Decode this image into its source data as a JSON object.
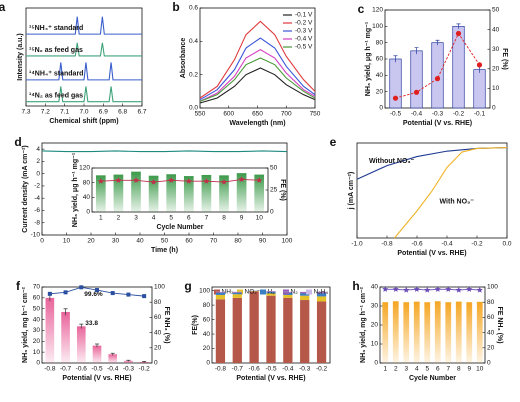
{
  "chart_data": [
    {
      "type": "line",
      "label": "a",
      "xlabel": "Chemical shift (ppm)",
      "ylabel": "Intensity (a.u.)",
      "xlim": [
        7.3,
        6.7
      ],
      "xticks": [
        7.3,
        7.2,
        7.1,
        {
          "value": 7,
          "label": "7.0"
        },
        6.9,
        6.8,
        6.7
      ],
      "ylim": [
        0,
        4.5
      ],
      "legend": "inline",
      "series": [
        {
          "name": "¹⁵NH₄⁺ standard",
          "color": "#3a5fcd",
          "x": [
            7.3,
            7.045,
            7.035,
            7.025,
            6.915,
            6.905,
            6.895,
            6.7
          ],
          "values": [
            3.3,
            3.3,
            4.1,
            3.3,
            3.3,
            4.1,
            3.3,
            3.3
          ]
        },
        {
          "name": "¹⁵N₂ as feed gas",
          "color": "#3fa37a",
          "x": [
            7.3,
            7.045,
            7.035,
            7.025,
            6.915,
            6.905,
            6.895,
            6.7
          ],
          "values": [
            2.3,
            2.3,
            2.9,
            2.3,
            2.3,
            2.9,
            2.3,
            2.3
          ]
        },
        {
          "name": "¹⁴NH₄⁺ standard",
          "color": "#3a5fcd",
          "x": [
            7.3,
            7.13,
            7.12,
            7.11,
            7.0,
            6.99,
            6.98,
            6.87,
            6.86,
            6.85,
            6.7
          ],
          "values": [
            1.2,
            1.2,
            2.0,
            1.2,
            1.2,
            2.0,
            1.2,
            1.2,
            2.0,
            1.2,
            1.2
          ]
        },
        {
          "name": "¹⁴N₂ as feed gas",
          "color": "#3fa37a",
          "x": [
            7.3,
            7.13,
            7.12,
            7.11,
            7.0,
            6.99,
            6.98,
            6.87,
            6.86,
            6.85,
            6.7
          ],
          "values": [
            0.2,
            0.2,
            0.9,
            0.2,
            0.2,
            0.9,
            0.2,
            0.2,
            0.9,
            0.2,
            0.2
          ]
        }
      ]
    },
    {
      "type": "line",
      "label": "b",
      "xlabel": "Wavelength (nm)",
      "ylabel": "Absorbance",
      "xlim": [
        550,
        750
      ],
      "xticks": [
        550,
        600,
        650,
        700,
        750
      ],
      "ylim": [
        0,
        0.6
      ],
      "yticks": [
        {
          "value": 0,
          "label": "0.0"
        },
        0.2,
        0.4,
        0.6
      ],
      "legend": "upper right",
      "series": [
        {
          "name": "-0.1 V",
          "color": "#222222",
          "x": [
            550,
            580,
            610,
            630,
            655,
            680,
            700,
            730,
            750
          ],
          "values": [
            0.03,
            0.06,
            0.13,
            0.2,
            0.24,
            0.2,
            0.14,
            0.08,
            0.05
          ]
        },
        {
          "name": "-0.2 V",
          "color": "#e0383b",
          "x": [
            550,
            580,
            610,
            630,
            655,
            680,
            700,
            730,
            750
          ],
          "values": [
            0.06,
            0.13,
            0.29,
            0.44,
            0.52,
            0.44,
            0.31,
            0.17,
            0.1
          ]
        },
        {
          "name": "-0.3 V",
          "color": "#3b55d9",
          "x": [
            550,
            580,
            610,
            630,
            655,
            680,
            700,
            730,
            750
          ],
          "values": [
            0.05,
            0.11,
            0.23,
            0.36,
            0.42,
            0.36,
            0.25,
            0.13,
            0.08
          ]
        },
        {
          "name": "-0.4 V",
          "color": "#d63fc4",
          "x": [
            550,
            580,
            610,
            630,
            655,
            680,
            700,
            730,
            750
          ],
          "values": [
            0.04,
            0.09,
            0.19,
            0.3,
            0.35,
            0.3,
            0.21,
            0.11,
            0.07
          ]
        },
        {
          "name": "-0.5 V",
          "color": "#4a9a3a",
          "x": [
            550,
            580,
            610,
            630,
            655,
            680,
            700,
            730,
            750
          ],
          "values": [
            0.04,
            0.08,
            0.17,
            0.26,
            0.3,
            0.26,
            0.18,
            0.1,
            0.06
          ]
        }
      ]
    },
    {
      "type": "bar",
      "label": "c",
      "xlabel": "Potential (V vs. RHE)",
      "ylabel": "NH₃ yield, μg h⁻¹ mg⁻¹",
      "y2label": "FE (%)",
      "categories": [
        "-0.5",
        "-0.4",
        "-0.3",
        "-0.2",
        "-0.1"
      ],
      "ylim": [
        0,
        120
      ],
      "yticks": [
        0,
        20,
        40,
        60,
        80,
        100,
        120
      ],
      "y2lim": [
        0,
        50
      ],
      "y2ticks": [
        0,
        10,
        20,
        30,
        40,
        50
      ],
      "series": [
        {
          "name": "NH₃ yield",
          "color": "#c9c6f0",
          "edgecolor": "#2c3e9e",
          "values": [
            60,
            70,
            80,
            100,
            47
          ],
          "errors": [
            4,
            4,
            3,
            3,
            4
          ]
        },
        {
          "name": "FE",
          "color": "#e02020",
          "axis": "y2",
          "marker": "circle",
          "linestyle": "dashed",
          "values": [
            5,
            8,
            15,
            38,
            22
          ]
        }
      ]
    },
    {
      "type": "line",
      "label": "d",
      "xlabel": "Time (h)",
      "ylabel": "Current density (mA cm⁻²)",
      "xlim": [
        0,
        100
      ],
      "xticks": [
        0,
        10,
        20,
        30,
        40,
        50,
        60,
        70,
        80,
        90,
        100
      ],
      "ylim": [
        -10,
        5
      ],
      "yticks": [
        -10,
        -8,
        -6,
        -4,
        -2,
        0,
        2,
        4
      ],
      "series": [
        {
          "name": "Current density",
          "color": "#1f8a80",
          "x": [
            0,
            10,
            20,
            30,
            40,
            50,
            60,
            70,
            80,
            90,
            100
          ],
          "values": [
            3.7,
            3.6,
            3.6,
            3.7,
            3.6,
            3.6,
            3.7,
            3.6,
            3.6,
            3.7,
            3.6
          ]
        }
      ]
    },
    {
      "type": "bar",
      "xlabel": "Cycle Number",
      "ylabel": "NH₃ yield, μg h⁻¹ mg⁻¹",
      "y2label": "FE (%)",
      "categories": [
        "1",
        "2",
        "3",
        "4",
        "5",
        "6",
        "7",
        "8",
        "9",
        "10"
      ],
      "ylim": [
        0,
        120
      ],
      "yticks": [
        0,
        40,
        80,
        120
      ],
      "y2lim": [
        0,
        50
      ],
      "y2ticks": [
        0,
        25,
        50
      ],
      "gradient": true,
      "series": [
        {
          "name": "NH₃ yield",
          "color": "#3c9a4a",
          "values": [
            100,
            102,
            110,
            99,
            103,
            98,
            101,
            100,
            106,
            102
          ]
        },
        {
          "name": "FE",
          "color": "#c0304a",
          "axis": "y2",
          "marker": "star",
          "values": [
            35,
            36,
            36,
            34,
            36,
            35,
            35,
            34,
            37,
            36
          ]
        }
      ]
    },
    {
      "type": "line",
      "label": "e",
      "xlabel": "Potential (V vs. RHE)",
      "ylabel": "j (mA cm⁻²)",
      "xlim": [
        -1,
        0
      ],
      "xticks": [
        {
          "value": -1,
          "label": "-1.0"
        },
        -0.8,
        -0.6,
        -0.4,
        -0.2,
        {
          "value": 0,
          "label": "0.0"
        }
      ],
      "ylim": [
        -100,
        5
      ],
      "legend": "inline",
      "series": [
        {
          "name": "Without NO₃⁻",
          "color": "#1f3a93",
          "x": [
            -1,
            -0.8,
            -0.6,
            -0.4,
            -0.2,
            0
          ],
          "values": [
            -35,
            -20,
            -10,
            -4,
            -1,
            0
          ]
        },
        {
          "name": "With NO₃⁻",
          "color": "#f0b429",
          "x": [
            -0.75,
            -0.6,
            -0.5,
            -0.4,
            -0.3,
            -0.2,
            0
          ],
          "values": [
            -100,
            -70,
            -48,
            -22,
            -5,
            -1,
            0
          ]
        }
      ]
    },
    {
      "type": "bar",
      "label": "f",
      "xlabel": "Potential (V vs. RHE)",
      "ylabel": "NH₃ yield, mg h⁻¹ cm⁻²",
      "y2label": "FE NH₃ (%)",
      "categories": [
        "-0.8",
        "-0.7",
        "-0.6",
        "-0.5",
        "-0.4",
        "-0.3",
        "-0.2"
      ],
      "ylim": [
        0,
        70
      ],
      "yticks": [
        0,
        10,
        20,
        30,
        40,
        50,
        60,
        70
      ],
      "y2lim": [
        0,
        100
      ],
      "y2ticks": [
        0,
        20,
        40,
        60,
        80,
        100
      ],
      "gradient": true,
      "series": [
        {
          "name": "NH₃ yield",
          "color": "#e8649a",
          "values": [
            60,
            47,
            33.8,
            16,
            8,
            2,
            1
          ],
          "errors": [
            3,
            3,
            2,
            1.5,
            1,
            0.5,
            0.5
          ],
          "value_labels": [
            null,
            null,
            "33.8",
            null,
            null,
            null,
            null
          ]
        },
        {
          "name": "FE",
          "color": "#2b4fa0",
          "axis": "y2",
          "marker": "square",
          "values": [
            91,
            93,
            99.6,
            96,
            92,
            90,
            88
          ],
          "errors": [
            2,
            2,
            2,
            2,
            2,
            2,
            2
          ],
          "value_labels": [
            null,
            null,
            "99.6%",
            null,
            null,
            null,
            null
          ]
        }
      ]
    },
    {
      "type": "bar",
      "label": "g",
      "xlabel": "Potential (V vs. RHE)",
      "ylabel": "FE(%)",
      "categories": [
        "-0.8",
        "-0.7",
        "-0.6",
        "-0.5",
        "-0.4",
        "-0.3",
        "-0.2"
      ],
      "stacked": true,
      "legend": "top",
      "ylim": [
        0,
        105
      ],
      "yticks": [
        0,
        20,
        40,
        60,
        80,
        100
      ],
      "series": [
        {
          "name": "NH₃",
          "color": "#b5584a",
          "values": [
            88,
            90,
            99,
            93,
            90,
            87,
            85
          ]
        },
        {
          "name": "NO₂⁻",
          "color": "#e6c229",
          "values": [
            6,
            5,
            0.5,
            3,
            4,
            6,
            7
          ]
        },
        {
          "name": "H₂",
          "color": "#3a7fc2",
          "values": [
            3,
            2,
            0.3,
            2,
            3,
            3,
            4
          ]
        },
        {
          "name": "N₂",
          "color": "#8e5fb5",
          "values": [
            1,
            1,
            0.1,
            1,
            1,
            2,
            2
          ]
        },
        {
          "name": "N₂H₄",
          "color": "#c9b9e6",
          "values": [
            0.5,
            0.5,
            0.1,
            0.5,
            0.5,
            0.5,
            0.5
          ]
        }
      ]
    },
    {
      "type": "bar",
      "label": "h",
      "xlabel": "Cycle Number",
      "ylabel": "NH₃ yield, mg h⁻¹ cm⁻²",
      "y2label": "FE NH₃ (%)",
      "categories": [
        "1",
        "2",
        "3",
        "4",
        "5",
        "6",
        "7",
        "8",
        "9",
        "10"
      ],
      "ylim": [
        0,
        40
      ],
      "yticks": [
        0,
        10,
        20,
        30,
        40
      ],
      "y2lim": [
        0,
        100
      ],
      "y2ticks": [
        0,
        20,
        40,
        60,
        80,
        100
      ],
      "gradient": true,
      "series": [
        {
          "name": "NH₃ yield",
          "color": "#f5a623",
          "values": [
            32,
            32.5,
            32,
            32.3,
            32,
            32.5,
            32,
            32.3,
            32,
            32.2
          ]
        },
        {
          "name": "FE",
          "color": "#6a4bb5",
          "axis": "y2",
          "marker": "star",
          "values": [
            97,
            97,
            96,
            97,
            96,
            97,
            97,
            96,
            97,
            96
          ]
        }
      ]
    }
  ]
}
